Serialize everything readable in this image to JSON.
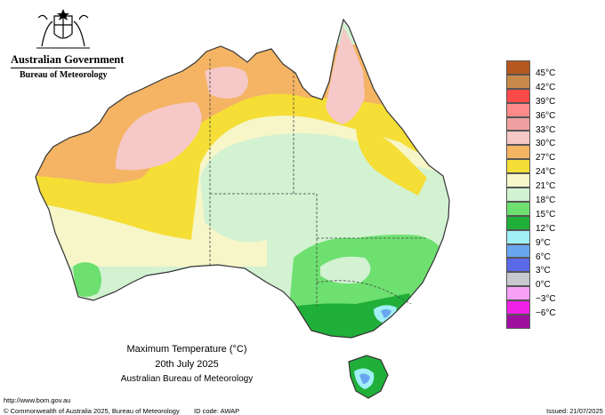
{
  "header": {
    "government": "Australian Government",
    "bureau": "Bureau of Meteorology"
  },
  "map": {
    "title": "Maximum Temperature (°C)",
    "date": "20th July 2025",
    "agency": "Australian Bureau of Meteorology",
    "ocean_color": "#ffffff",
    "border_color": "#333333"
  },
  "legend": [
    {
      "label": "45°C",
      "color": "#b5581f"
    },
    {
      "label": "42°C",
      "color": "#c88a4a"
    },
    {
      "label": "39°C",
      "color": "#ff4a4a"
    },
    {
      "label": "36°C",
      "color": "#ff8a8a"
    },
    {
      "label": "33°C",
      "color": "#f0a0a0"
    },
    {
      "label": "30°C",
      "color": "#f6c8c8"
    },
    {
      "label": "27°C",
      "color": "#f4b464"
    },
    {
      "label": "24°C",
      "color": "#f5de36"
    },
    {
      "label": "21°C",
      "color": "#f6f6c8"
    },
    {
      "label": "18°C",
      "color": "#d2f2d2"
    },
    {
      "label": "15°C",
      "color": "#6ee070"
    },
    {
      "label": "12°C",
      "color": "#20b03a"
    },
    {
      "label": "9°C",
      "color": "#a0f0f6"
    },
    {
      "label": "6°C",
      "color": "#6aa6f0"
    },
    {
      "label": "3°C",
      "color": "#5a6ae6"
    },
    {
      "label": "0°C",
      "color": "#c8c8d0"
    },
    {
      "label": "−3°C",
      "color": "#f6a0f6"
    },
    {
      "label": "−6°C",
      "color": "#f020e6"
    },
    {
      "label": "",
      "color": "#a010a0"
    }
  ],
  "footer": {
    "url": "http://www.bom.gov.au",
    "copyright": "© Commonwealth of Australia 2025, Bureau of Meteorology",
    "id_code": "ID code: AWAP",
    "issued": "Issued: 21/07/2025"
  }
}
